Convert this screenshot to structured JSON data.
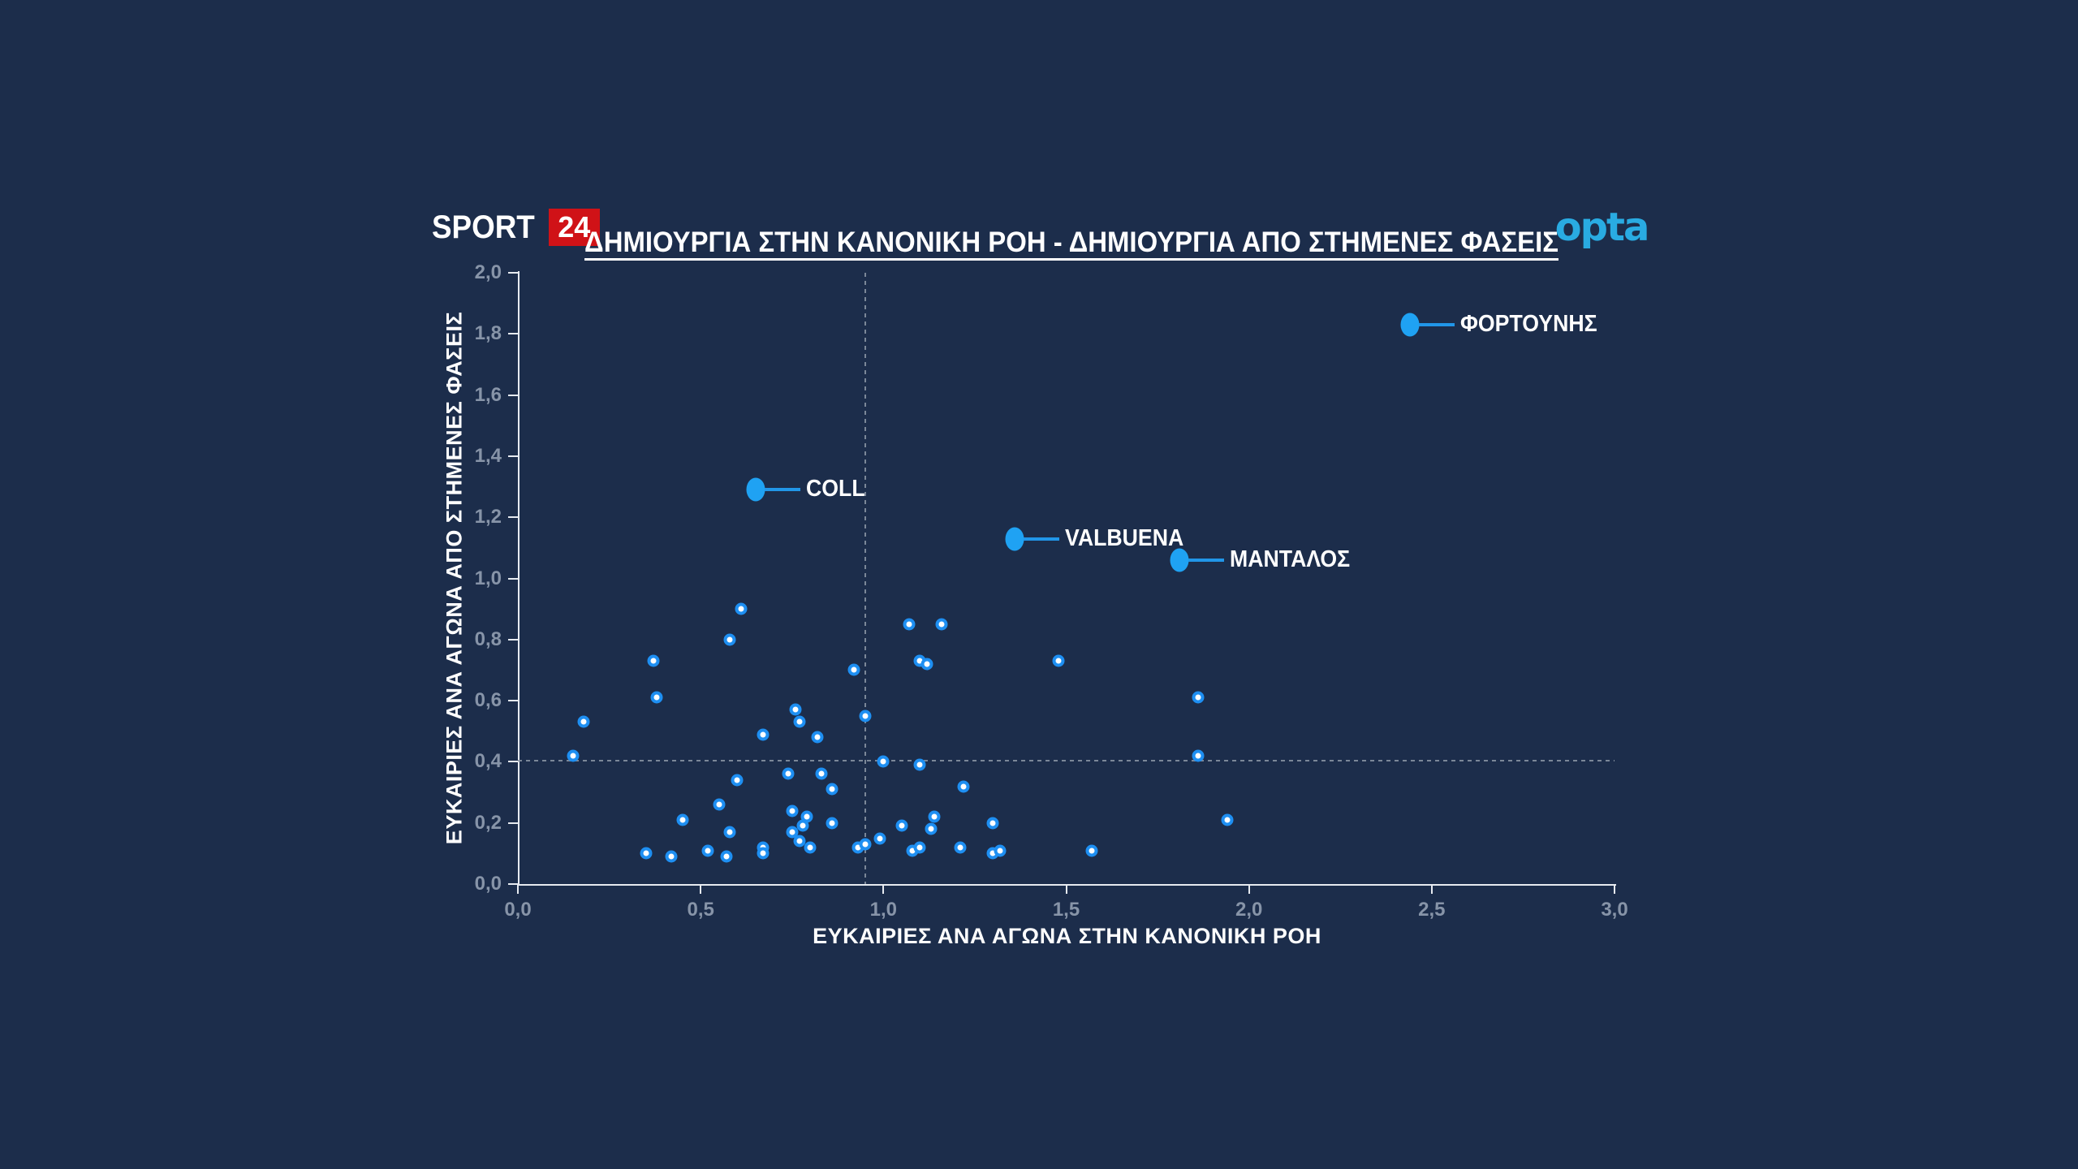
{
  "colors": {
    "background": "#1C2D4B",
    "point_ring_blue": "#1E8FF2",
    "labeled_dot_blue": "#1FA2F3",
    "connector_blue": "#2196E8",
    "axis_line": "#E6EAF0",
    "tick_text": "#8794A8",
    "dashed_grid": "#8C97A6",
    "text_white": "#FFFFFF",
    "sport24_red": "#D01217",
    "opta_cyan": "#29ABE2"
  },
  "header": {
    "sport24": {
      "text": "SPORT",
      "number": "24"
    },
    "opta": {
      "text": "opta"
    }
  },
  "chart_data": {
    "type": "scatter",
    "title": "ΔΗΜΙΟΥΡΓΙΑ ΣΤΗΝ ΚΑΝΟΝΙΚΗ ΡΟΗ - ΔΗΜΙΟΥΡΓΙΑ ΑΠΟ ΣΤΗΜΕΝΕΣ ΦΑΣΕΙΣ",
    "xlabel": "ΕΥΚΑΙΡΙΕΣ ΑΝΑ ΑΓΩΝΑ ΣΤΗΝ ΚΑΝΟΝΙΚΗ ΡΟΗ",
    "ylabel": "ΕΥΚΑΙΡΙΕΣ ΑΝΑ ΑΓΩΝΑ ΑΠΟ ΣΤΗΜΕΝΕΣ ΦΑΣΕΙΣ",
    "xlim": [
      0.0,
      3.0
    ],
    "ylim": [
      0.0,
      2.0
    ],
    "x_tick_labels": [
      "0,0",
      "0,5",
      "1,0",
      "1,5",
      "2,0",
      "2,5",
      "3,0"
    ],
    "y_tick_labels": [
      "0,0",
      "0,2",
      "0,4",
      "0,6",
      "0,8",
      "1,0",
      "1,2",
      "1,4",
      "1,6",
      "1,8",
      "2,0"
    ],
    "grid": "off",
    "legend": "none",
    "reference_lines": {
      "style": "dashed",
      "x_avg": 0.95,
      "y_avg": 0.405
    },
    "labeled_points": [
      {
        "name": "ΦΟΡΤΟΥΝΗΣ",
        "x": 2.44,
        "y": 1.83
      },
      {
        "name": "COLL",
        "x": 0.65,
        "y": 1.29
      },
      {
        "name": "VALBUENA",
        "x": 1.36,
        "y": 1.13
      },
      {
        "name": "ΜΑΝΤΑΛΟΣ",
        "x": 1.81,
        "y": 1.06
      }
    ],
    "points": [
      [
        0.61,
        0.9
      ],
      [
        0.58,
        0.8
      ],
      [
        0.37,
        0.73
      ],
      [
        0.38,
        0.61
      ],
      [
        0.18,
        0.53
      ],
      [
        0.15,
        0.42
      ],
      [
        0.76,
        0.57
      ],
      [
        0.77,
        0.53
      ],
      [
        0.67,
        0.49
      ],
      [
        0.82,
        0.48
      ],
      [
        0.92,
        0.7
      ],
      [
        0.95,
        0.55
      ],
      [
        1.0,
        0.4
      ],
      [
        0.74,
        0.36
      ],
      [
        0.83,
        0.36
      ],
      [
        0.86,
        0.31
      ],
      [
        0.6,
        0.34
      ],
      [
        0.55,
        0.26
      ],
      [
        0.45,
        0.21
      ],
      [
        0.58,
        0.17
      ],
      [
        0.75,
        0.24
      ],
      [
        0.79,
        0.22
      ],
      [
        0.78,
        0.19
      ],
      [
        0.75,
        0.17
      ],
      [
        0.77,
        0.14
      ],
      [
        0.8,
        0.12
      ],
      [
        0.86,
        0.2
      ],
      [
        0.67,
        0.12
      ],
      [
        0.67,
        0.1
      ],
      [
        0.52,
        0.11
      ],
      [
        0.35,
        0.1
      ],
      [
        0.42,
        0.09
      ],
      [
        0.57,
        0.09
      ],
      [
        0.93,
        0.12
      ],
      [
        0.95,
        0.13
      ],
      [
        0.99,
        0.15
      ],
      [
        1.07,
        0.85
      ],
      [
        1.16,
        0.85
      ],
      [
        1.1,
        0.73
      ],
      [
        1.12,
        0.72
      ],
      [
        1.48,
        0.73
      ],
      [
        1.86,
        0.61
      ],
      [
        1.86,
        0.42
      ],
      [
        1.1,
        0.39
      ],
      [
        1.22,
        0.32
      ],
      [
        1.05,
        0.19
      ],
      [
        1.14,
        0.22
      ],
      [
        1.13,
        0.18
      ],
      [
        1.08,
        0.11
      ],
      [
        1.1,
        0.12
      ],
      [
        1.21,
        0.12
      ],
      [
        1.3,
        0.2
      ],
      [
        1.3,
        0.1
      ],
      [
        1.32,
        0.11
      ],
      [
        1.57,
        0.11
      ],
      [
        1.94,
        0.21
      ]
    ]
  }
}
